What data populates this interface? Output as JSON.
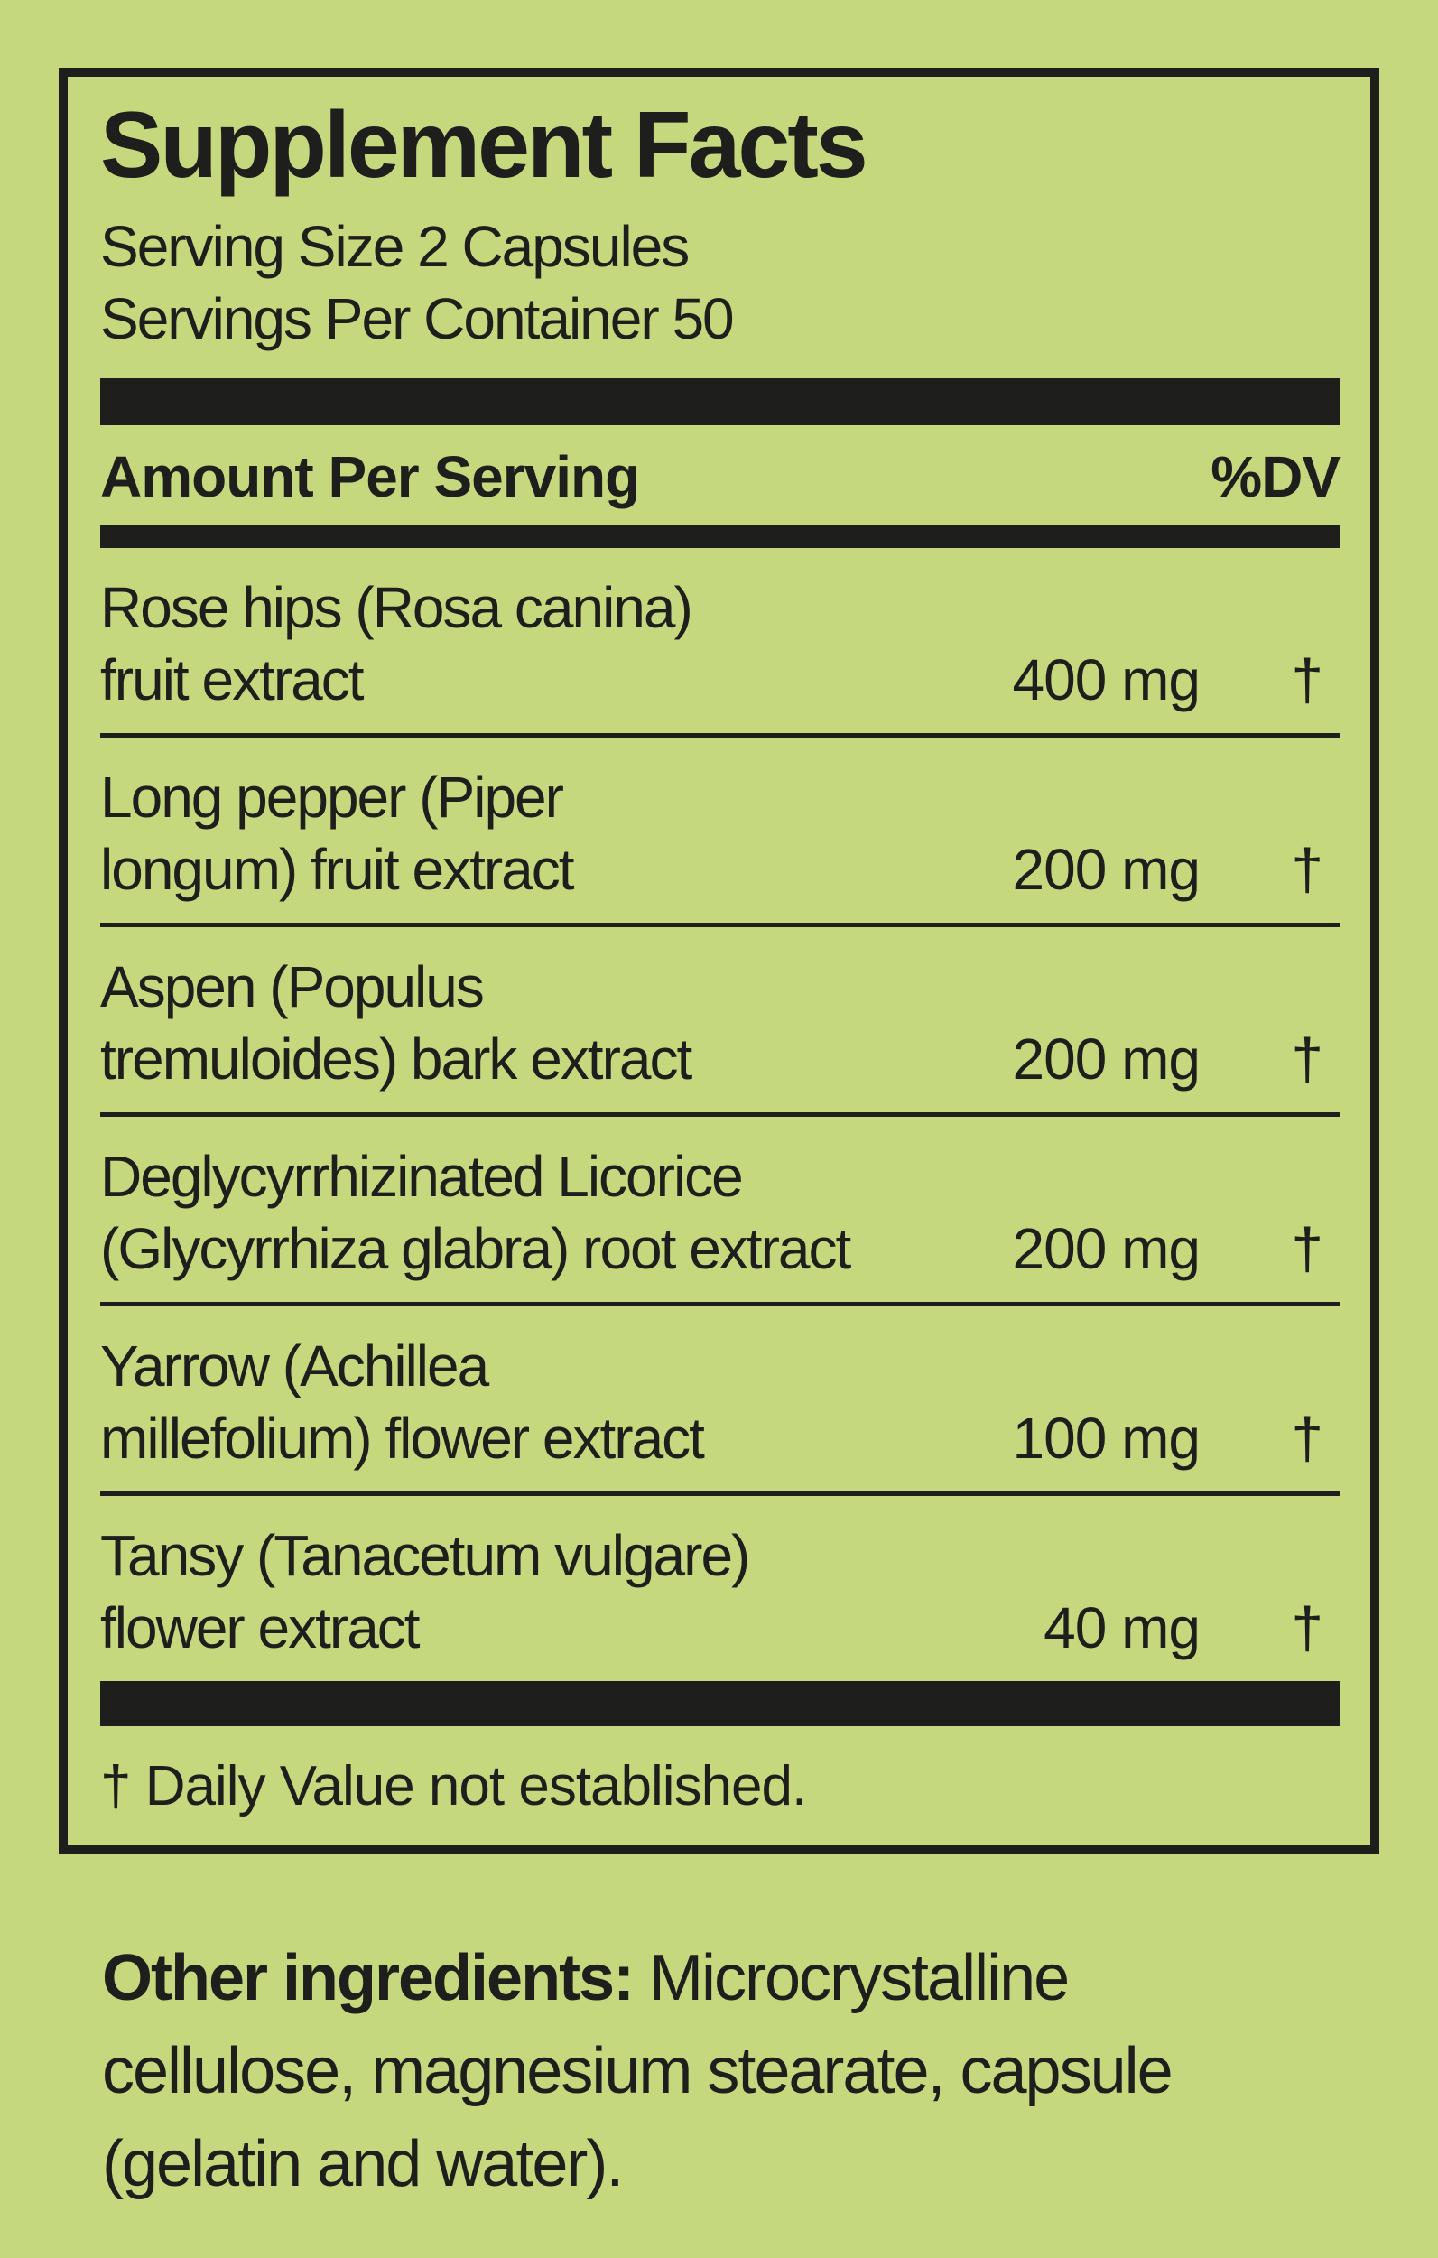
{
  "colors": {
    "background": "#c5d87d",
    "ink": "#1e1e1c"
  },
  "panel": {
    "title": "Supplement Facts",
    "serving_size": "Serving Size 2 Capsules",
    "servings_per_container": "Servings Per Container 50",
    "header": {
      "amount_label": "Amount Per Serving",
      "dv_label": "%DV"
    },
    "rows": [
      {
        "name_line1": "Rose hips (Rosa canina)",
        "name_line2": "fruit extract",
        "amount": "400 mg",
        "dv": "†"
      },
      {
        "name_line1": "Long pepper (Piper",
        "name_line2": "longum) fruit extract",
        "amount": "200 mg",
        "dv": "†"
      },
      {
        "name_line1": "Aspen (Populus",
        "name_line2": "tremuloides) bark extract",
        "amount": "200 mg",
        "dv": "†"
      },
      {
        "name_line1": "Deglycyrrhizinated Licorice",
        "name_line2": "(Glycyrrhiza glabra) root extract",
        "amount": "200 mg",
        "dv": "†"
      },
      {
        "name_line1": "Yarrow (Achillea",
        "name_line2": "millefolium) flower extract",
        "amount": "100 mg",
        "dv": "†"
      },
      {
        "name_line1": "Tansy (Tanacetum vulgare)",
        "name_line2": "flower extract",
        "amount": "40 mg",
        "dv": "†"
      }
    ],
    "footnote": "† Daily Value not established."
  },
  "other_ingredients": {
    "label": "Other ingredients:",
    "line1_rest": " Microcrystalline",
    "line2": "cellulose, magnesium stearate, capsule",
    "line3": "(gelatin and water)."
  }
}
